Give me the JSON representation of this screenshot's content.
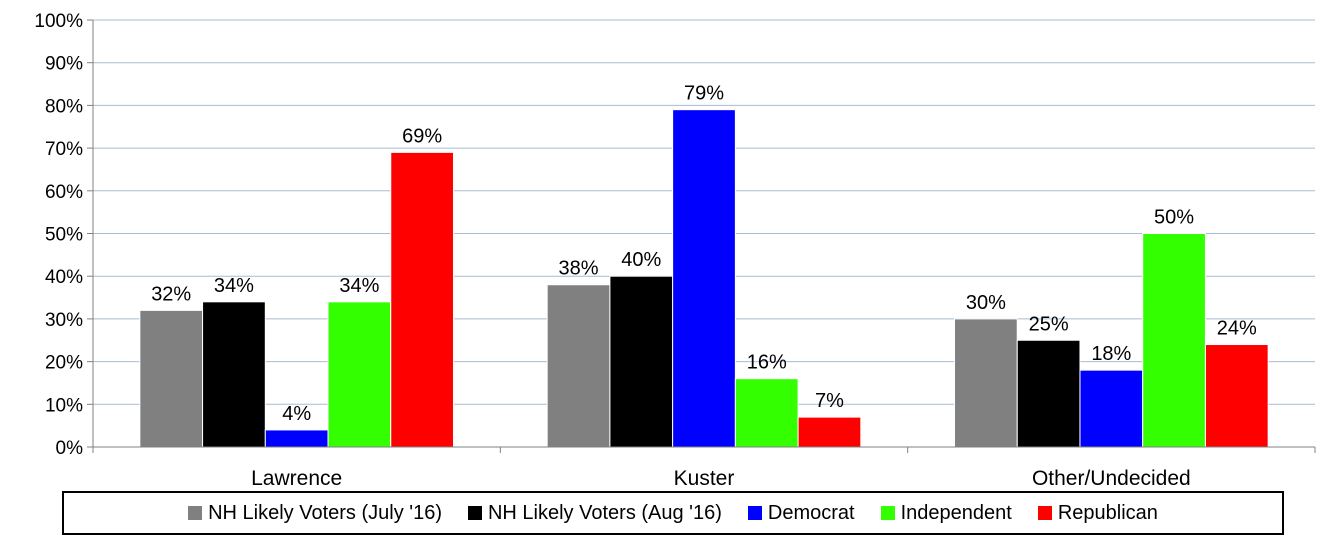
{
  "chart_data": {
    "type": "bar",
    "categories": [
      "Lawrence",
      "Kuster",
      "Other/Undecided"
    ],
    "series": [
      {
        "name": "NH Likely Voters (July '16)",
        "color": "#808080",
        "values": [
          32,
          38,
          30
        ]
      },
      {
        "name": "NH Likely Voters (Aug '16)",
        "color": "#000000",
        "values": [
          34,
          40,
          25
        ]
      },
      {
        "name": "Democrat",
        "color": "#0000ff",
        "values": [
          4,
          79,
          18
        ]
      },
      {
        "name": "Independent",
        "color": "#33ff00",
        "values": [
          34,
          16,
          50
        ]
      },
      {
        "name": "Republican",
        "color": "#ff0000",
        "values": [
          69,
          7,
          24
        ]
      }
    ],
    "ylim": [
      0,
      100
    ],
    "yticks": [
      "0%",
      "10%",
      "20%",
      "30%",
      "40%",
      "50%",
      "60%",
      "70%",
      "80%",
      "90%",
      "100%"
    ],
    "value_suffix": "%",
    "grid": true,
    "legend": "bottom"
  }
}
